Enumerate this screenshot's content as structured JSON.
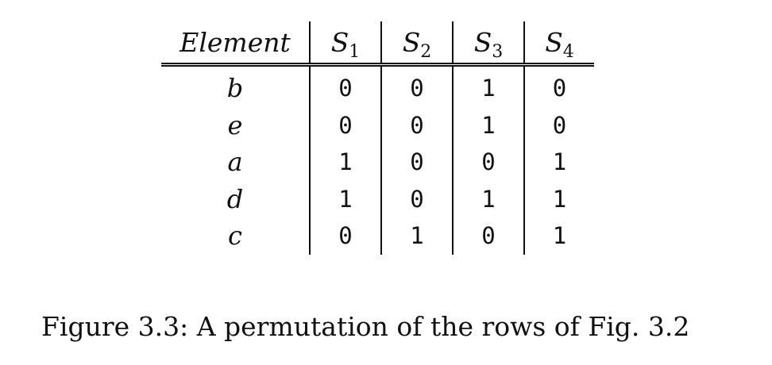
{
  "table": {
    "headers": [
      {
        "main": "Element",
        "sub": ""
      },
      {
        "main": "S",
        "sub": "1"
      },
      {
        "main": "S",
        "sub": "2"
      },
      {
        "main": "S",
        "sub": "3"
      },
      {
        "main": "S",
        "sub": "4"
      }
    ],
    "rows": [
      {
        "element": "b",
        "values": [
          "0",
          "0",
          "1",
          "0"
        ]
      },
      {
        "element": "e",
        "values": [
          "0",
          "0",
          "1",
          "0"
        ]
      },
      {
        "element": "a",
        "values": [
          "1",
          "0",
          "0",
          "1"
        ]
      },
      {
        "element": "d",
        "values": [
          "1",
          "0",
          "1",
          "1"
        ]
      },
      {
        "element": "c",
        "values": [
          "0",
          "1",
          "0",
          "1"
        ]
      }
    ]
  },
  "caption": "Figure 3.3: A permutation of the rows of Fig. 3.2"
}
